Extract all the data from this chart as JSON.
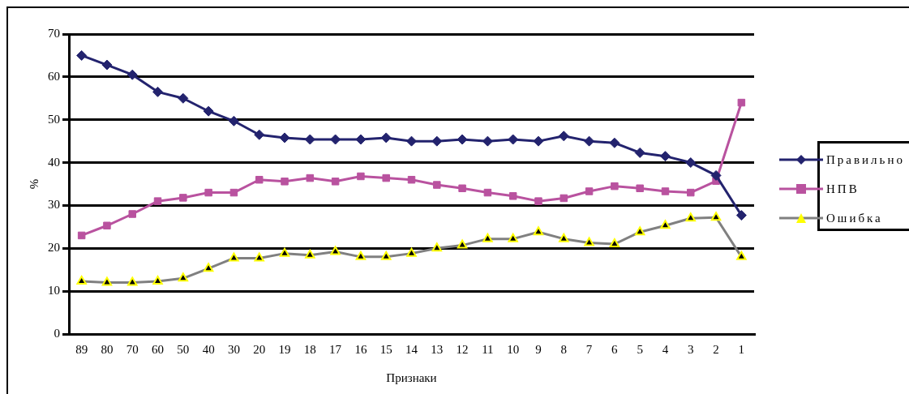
{
  "chart_data": {
    "type": "line",
    "xlabel": "Признаки",
    "ylabel": "%",
    "categories": [
      "89",
      "80",
      "70",
      "60",
      "50",
      "40",
      "30",
      "20",
      "19",
      "18",
      "17",
      "16",
      "15",
      "14",
      "13",
      "12",
      "11",
      "10",
      "9",
      "8",
      "7",
      "6",
      "5",
      "4",
      "3",
      "2",
      "1"
    ],
    "series": [
      {
        "name": "Правильно",
        "color": "#23236e",
        "marker": "diamond",
        "values": [
          65,
          62.8,
          60.5,
          56.5,
          55,
          52,
          49.7,
          46.5,
          45.8,
          45.4,
          45.4,
          45.4,
          45.8,
          45,
          45,
          45.4,
          45,
          45.4,
          45,
          46.2,
          45,
          44.6,
          42.3,
          41.5,
          40,
          37,
          27.7
        ]
      },
      {
        "name": "НПВ",
        "color": "#b9529f",
        "marker": "square",
        "values": [
          23,
          25.3,
          28,
          31,
          31.8,
          33,
          33,
          36,
          35.6,
          36.4,
          35.6,
          36.8,
          36.4,
          36,
          34.8,
          34,
          33,
          32.2,
          31,
          31.7,
          33.3,
          34.5,
          34,
          33.3,
          33,
          35.7,
          54
        ]
      },
      {
        "name": "Ошибка",
        "color": "#808080",
        "marker": "triangle",
        "values": [
          12.3,
          12,
          12,
          12.3,
          13,
          15.3,
          17.7,
          17.7,
          18.8,
          18.4,
          19.2,
          18,
          18,
          18.8,
          20,
          20.7,
          22.2,
          22.2,
          23.8,
          22.2,
          21.3,
          21,
          23.8,
          25.3,
          27,
          27.2,
          18
        ]
      }
    ],
    "ylim": [
      0,
      70
    ],
    "yticks": [
      0,
      10,
      20,
      30,
      40,
      50,
      60,
      70
    ],
    "grid": "y",
    "legend": "right"
  }
}
